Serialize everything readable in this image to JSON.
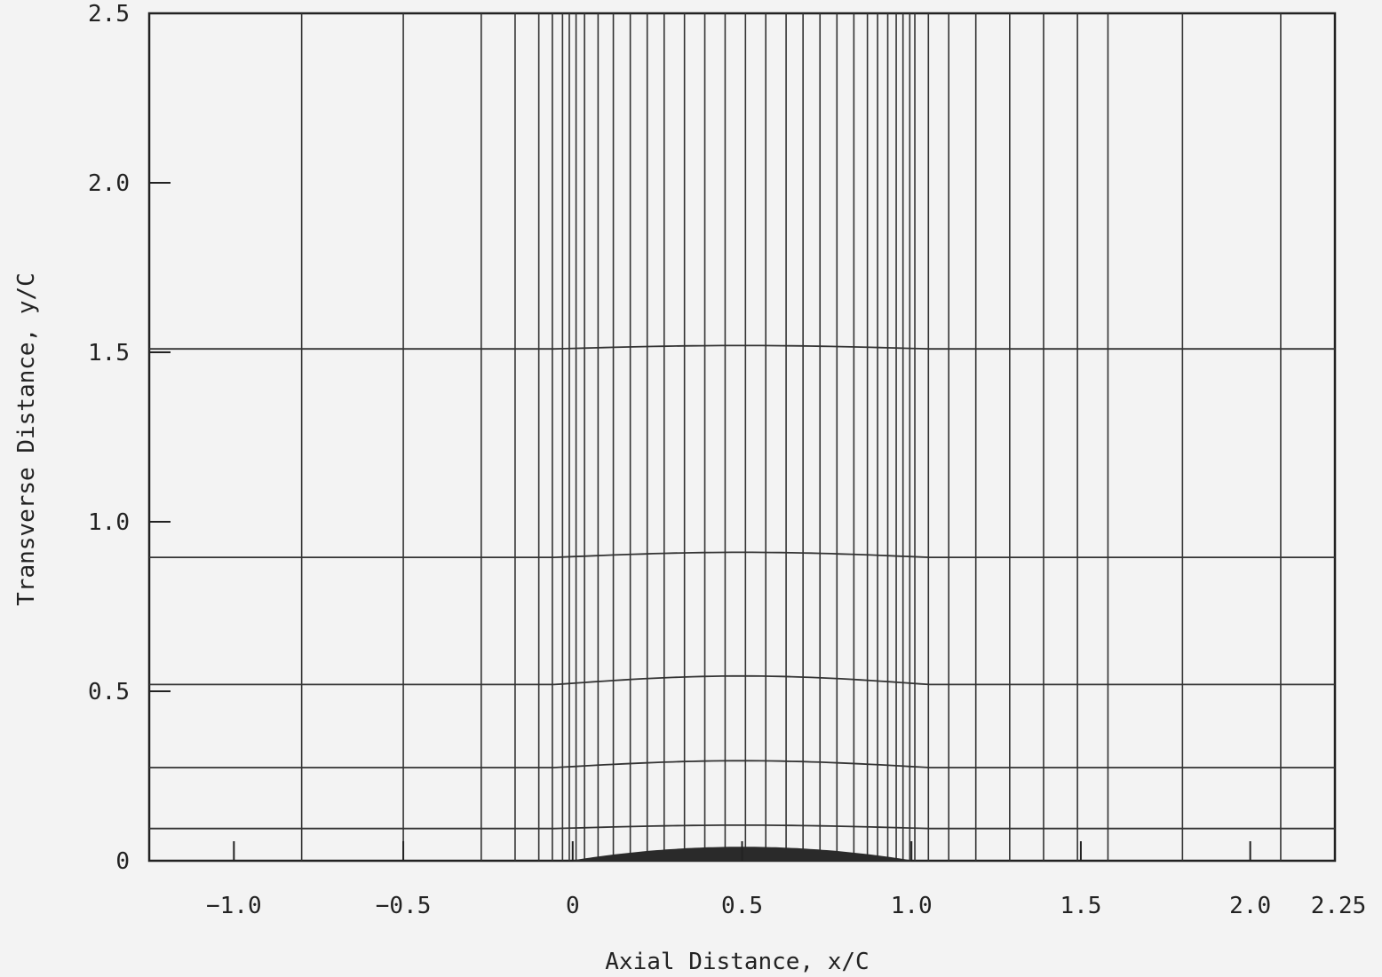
{
  "chart_data": {
    "type": "line",
    "title": "",
    "xlabel": "Axial Distance, x/C",
    "ylabel": "Transverse Distance, y/C",
    "xlim": [
      -1.25,
      2.25
    ],
    "ylim": [
      0,
      2.5
    ],
    "grid": false,
    "x_ticks": [
      {
        "value": -1.0,
        "label": "−1.0"
      },
      {
        "value": -0.5,
        "label": "−0.5"
      },
      {
        "value": 0,
        "label": "0"
      },
      {
        "value": 0.5,
        "label": "0.5"
      },
      {
        "value": 1.0,
        "label": "1.0"
      },
      {
        "value": 1.5,
        "label": "1.5"
      },
      {
        "value": 2.0,
        "label": "2.0"
      },
      {
        "value": 2.25,
        "label": "2.25"
      }
    ],
    "y_ticks": [
      {
        "value": 0,
        "label": "0"
      },
      {
        "value": 0.5,
        "label": "0.5"
      },
      {
        "value": 1.0,
        "label": "1.0"
      },
      {
        "value": 1.5,
        "label": "1.5"
      },
      {
        "value": 2.0,
        "label": "2.0"
      },
      {
        "value": 2.5,
        "label": "2.5"
      }
    ],
    "grid_x_lines": [
      -0.8,
      -0.5,
      -0.27,
      -0.17,
      -0.1,
      -0.06,
      -0.03,
      -0.01,
      0.01,
      0.035,
      0.075,
      0.12,
      0.17,
      0.22,
      0.27,
      0.33,
      0.39,
      0.45,
      0.51,
      0.57,
      0.63,
      0.68,
      0.73,
      0.78,
      0.83,
      0.87,
      0.9,
      0.93,
      0.955,
      0.975,
      0.995,
      1.01,
      1.05,
      1.11,
      1.19,
      1.29,
      1.39,
      1.49,
      1.58,
      1.8,
      2.09
    ],
    "grid_y_lines": [
      {
        "y_edge": 0.095,
        "y_mid": 0.105
      },
      {
        "y_edge": 0.275,
        "y_mid": 0.295
      },
      {
        "y_edge": 0.52,
        "y_mid": 0.545
      },
      {
        "y_edge": 0.895,
        "y_mid": 0.91
      },
      {
        "y_edge": 1.51,
        "y_mid": 1.52
      }
    ],
    "airfoil": {
      "x_start": 0.0,
      "x_end": 1.0,
      "max_thickness": 0.04
    }
  }
}
